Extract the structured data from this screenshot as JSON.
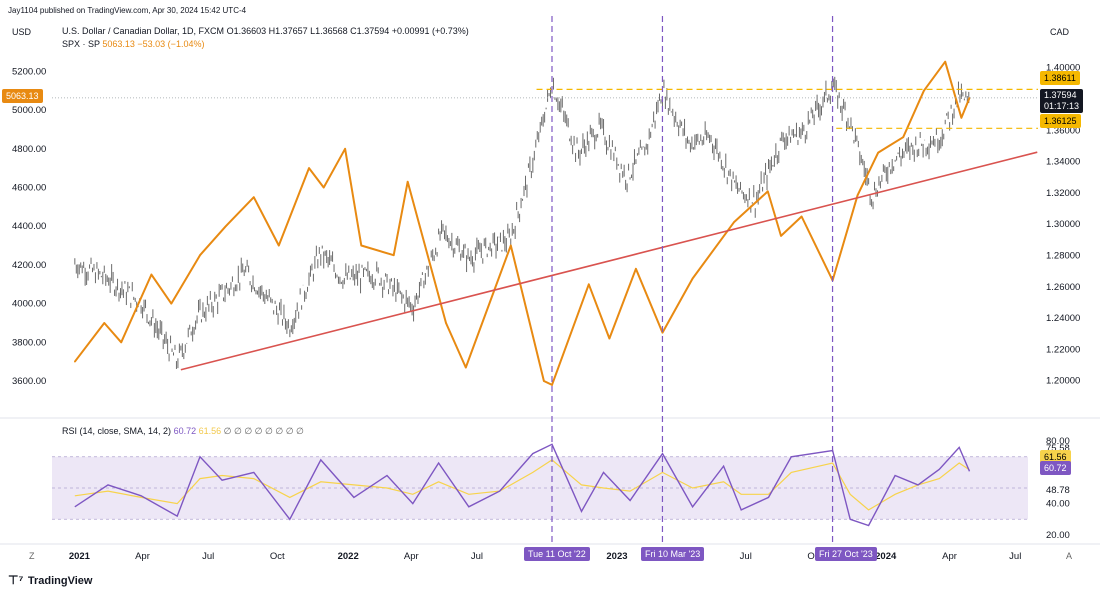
{
  "header": {
    "publisher": "Jay1104 published on TradingView.com, Apr 30, 2024 15:42 UTC-4",
    "left_currency": "USD",
    "right_currency": "CAD",
    "main_symbol": "U.S. Dollar / Canadian Dollar, 1D, FXCM",
    "ohlc": "O1.36603 H1.37657 L1.36568 C1.37594 +0.00991 (+0.73%)",
    "compare_symbol": "SPX · SP",
    "compare_values": "5063.13 −53.03 (−1.04%)"
  },
  "rsi_header": {
    "label": "RSI (14, close, SMA, 14, 2)",
    "value1": "60.72",
    "value2": "61.56",
    "placeholders": "∅ ∅ ∅ ∅ ∅ ∅ ∅ ∅"
  },
  "footer": {
    "logo_text": "TradingView",
    "left_glyph": "Z",
    "right_glyph": "A"
  },
  "colors": {
    "usdcad": "#6b6b6b",
    "spx": "#e88a12",
    "trendline": "#d9534f",
    "event_lines": "#7e57c2",
    "levels": "#f5b800",
    "rsi": "#7e57c2",
    "rsi_ma": "#f7d34b",
    "rsi_band": "#ede7f6"
  },
  "badges": {
    "spx_price": "5063.13",
    "level_high": "1.38611",
    "current_price": "1.37594",
    "countdown": "01:17:13",
    "level_low": "1.36125",
    "rsi_ma": "61.56",
    "rsi_value": "60.72"
  },
  "event_badges": [
    "Tue 11 Oct '22",
    "Fri 10 Mar '23",
    "Fri 27 Oct '23"
  ],
  "chart_data": {
    "type": "line",
    "time_axis": [
      "2021",
      "Apr",
      "Jul",
      "Oct",
      "2022",
      "Apr",
      "Jul",
      "Oct",
      "2023",
      "Apr",
      "Jul",
      "Oct",
      "2024",
      "Apr",
      "Jul"
    ],
    "left_axis": {
      "label": "USD",
      "ticks": [
        3600,
        3800,
        4000,
        4200,
        4400,
        4600,
        4800,
        5000,
        5200
      ],
      "tick_labels": [
        "3600.00",
        "3800.00",
        "4000.00",
        "4200.00",
        "4400.00",
        "4600.00",
        "4800.00",
        "5000.00",
        "5200.00"
      ],
      "range": [
        3440,
        5300
      ]
    },
    "right_axis": {
      "label": "CAD",
      "ticks": [
        1.2,
        1.22,
        1.24,
        1.26,
        1.28,
        1.3,
        1.32,
        1.34,
        1.36,
        1.38,
        1.4
      ],
      "tick_labels": [
        "1.20000",
        "1.22000",
        "1.24000",
        "1.26000",
        "1.28000",
        "1.30000",
        "1.32000",
        "1.34000",
        "1.36000",
        "1.38000",
        "1.40000"
      ],
      "range": [
        1.18,
        1.41
      ]
    },
    "series": [
      {
        "name": "U.S. Dollar / Canadian Dollar",
        "axis": "right",
        "style": "candles",
        "x": [
          "2021-01-01",
          "2021-02-15",
          "2021-04-01",
          "2021-05-20",
          "2021-06-15",
          "2021-07-20",
          "2021-08-20",
          "2021-10-20",
          "2021-12-01",
          "2022-01-01",
          "2022-02-15",
          "2022-04-05",
          "2022-05-15",
          "2022-06-20",
          "2022-07-15",
          "2022-08-15",
          "2022-09-15",
          "2022-10-11",
          "2022-11-15",
          "2022-12-15",
          "2023-01-20",
          "2023-02-15",
          "2023-03-10",
          "2023-04-15",
          "2023-05-15",
          "2023-06-20",
          "2023-07-15",
          "2023-08-20",
          "2023-09-15",
          "2023-10-27",
          "2023-11-20",
          "2023-12-20",
          "2024-01-15",
          "2024-02-15",
          "2024-03-20",
          "2024-04-16",
          "2024-04-30"
        ],
        "y": [
          1.275,
          1.265,
          1.25,
          1.212,
          1.24,
          1.255,
          1.27,
          1.235,
          1.282,
          1.265,
          1.268,
          1.247,
          1.295,
          1.278,
          1.285,
          1.29,
          1.34,
          1.39,
          1.345,
          1.362,
          1.33,
          1.348,
          1.385,
          1.352,
          1.355,
          1.322,
          1.315,
          1.355,
          1.358,
          1.388,
          1.365,
          1.318,
          1.34,
          1.35,
          1.355,
          1.382,
          1.376
        ]
      },
      {
        "name": "SPX",
        "axis": "left",
        "style": "line",
        "x": [
          "2021-01-01",
          "2021-02-10",
          "2021-03-05",
          "2021-04-15",
          "2021-05-12",
          "2021-06-20",
          "2021-07-25",
          "2021-09-01",
          "2021-10-05",
          "2021-11-15",
          "2021-12-05",
          "2022-01-03",
          "2022-01-25",
          "2022-03-10",
          "2022-03-29",
          "2022-05-20",
          "2022-06-16",
          "2022-08-16",
          "2022-09-30",
          "2022-10-11",
          "2022-11-30",
          "2022-12-28",
          "2023-02-02",
          "2023-03-10",
          "2023-04-20",
          "2023-06-15",
          "2023-07-31",
          "2023-08-18",
          "2023-09-15",
          "2023-10-27",
          "2023-11-30",
          "2023-12-28",
          "2024-01-31",
          "2024-02-28",
          "2024-03-28",
          "2024-04-19",
          "2024-04-30"
        ],
        "y": [
          3700,
          3900,
          3800,
          4150,
          4000,
          4250,
          4400,
          4550,
          4300,
          4700,
          4600,
          4800,
          4300,
          4250,
          4630,
          3900,
          3670,
          4300,
          3600,
          3580,
          4100,
          3820,
          4180,
          3850,
          4130,
          4420,
          4580,
          4350,
          4450,
          4120,
          4560,
          4780,
          4860,
          5100,
          5250,
          4960,
          5063
        ]
      }
    ],
    "trendline": {
      "axis": "right",
      "x": [
        "2021-05-25",
        "2024-07-31"
      ],
      "y": [
        1.207,
        1.346
      ]
    },
    "vertical_markers": [
      "2022-10-11",
      "2023-03-10",
      "2023-10-27"
    ],
    "horizontal_levels": [
      1.38611,
      1.36125
    ],
    "rsi": {
      "label": "RSI (14, close, SMA, 14, 2)",
      "axis_ticks": [
        "80.00",
        "75.58",
        "48.78",
        "40.00",
        "20.00"
      ],
      "band": [
        30,
        70
      ],
      "ylim": [
        18,
        82
      ],
      "x": [
        "2021-01-01",
        "2021-02-15",
        "2021-04-01",
        "2021-05-20",
        "2021-06-20",
        "2021-07-20",
        "2021-09-01",
        "2021-10-20",
        "2021-12-01",
        "2022-01-15",
        "2022-03-01",
        "2022-04-05",
        "2022-05-10",
        "2022-06-20",
        "2022-08-01",
        "2022-09-15",
        "2022-10-11",
        "2022-11-20",
        "2022-12-20",
        "2023-01-25",
        "2023-03-10",
        "2023-04-20",
        "2023-06-01",
        "2023-06-25",
        "2023-08-01",
        "2023-09-01",
        "2023-10-27",
        "2023-11-20",
        "2023-12-15",
        "2024-01-20",
        "2024-02-20",
        "2024-03-20",
        "2024-04-16",
        "2024-04-30"
      ],
      "values": [
        38,
        52,
        45,
        32,
        70,
        55,
        60,
        30,
        68,
        44,
        58,
        40,
        66,
        38,
        48,
        72,
        78,
        35,
        60,
        42,
        72,
        38,
        64,
        36,
        44,
        70,
        74,
        30,
        26,
        58,
        52,
        62,
        76,
        60.72
      ],
      "ma_values": [
        45,
        48,
        44,
        40,
        56,
        58,
        56,
        44,
        54,
        52,
        50,
        46,
        54,
        46,
        48,
        60,
        68,
        52,
        50,
        48,
        60,
        50,
        54,
        46,
        46,
        60,
        66,
        46,
        36,
        46,
        52,
        56,
        66,
        61.56
      ]
    }
  }
}
